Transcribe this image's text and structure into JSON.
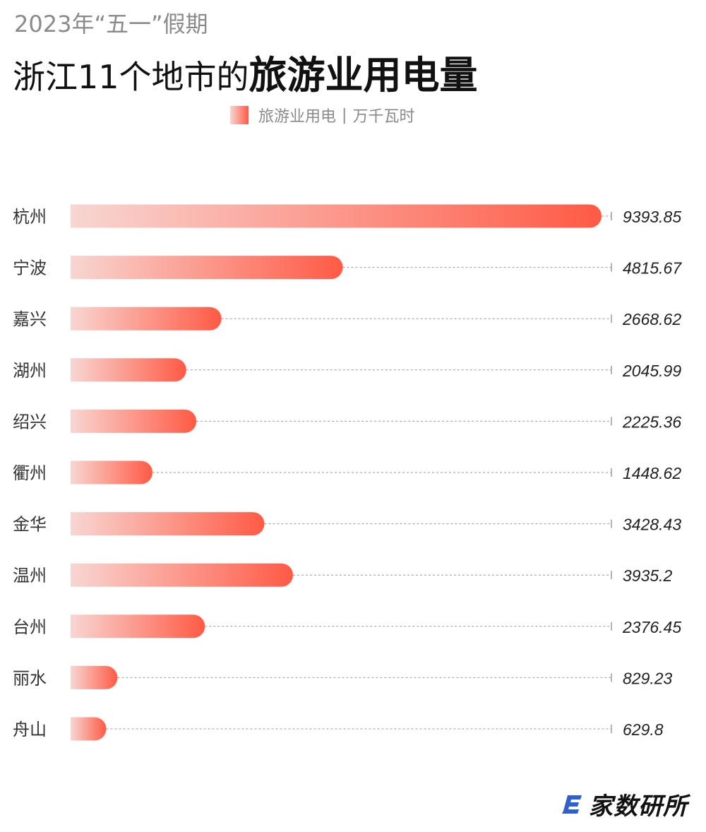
{
  "header": {
    "subtitle": "2023年“五一”假期",
    "title_prefix": "浙江11个地市的",
    "title_highlight": "旅游业用电量"
  },
  "legend": {
    "series_label": "旅游业用电",
    "separator": "|",
    "unit_label": "万千瓦时"
  },
  "colors": {
    "bar_start": "#f8d6d2",
    "bar_end": "#ff5a45",
    "leader_line": "#9a9a9a",
    "category_text": "#333333",
    "value_text": "#222222"
  },
  "chart_data": {
    "type": "bar",
    "orientation": "horizontal",
    "categories": [
      "杭州",
      "宁波",
      "嘉兴",
      "湖州",
      "绍兴",
      "衢州",
      "金华",
      "温州",
      "台州",
      "丽水",
      "舟山"
    ],
    "values": [
      9393.85,
      4815.67,
      2668.62,
      2045.99,
      2225.36,
      1448.62,
      3428.43,
      3935.2,
      2376.45,
      829.23,
      629.8
    ],
    "value_labels": [
      "9393.85",
      "4815.67",
      "2668.62",
      "2045.99",
      "2225.36",
      "1448.62",
      "3428.43",
      "3935.2",
      "2376.45",
      "829.23",
      "629.8"
    ],
    "series": [
      {
        "name": "旅游业用电"
      }
    ],
    "unit": "万千瓦时",
    "grid": false,
    "legend_position": "top-center"
  },
  "footer": {
    "logo_text": "家数研所",
    "logo_icon": "e-logo-icon"
  }
}
